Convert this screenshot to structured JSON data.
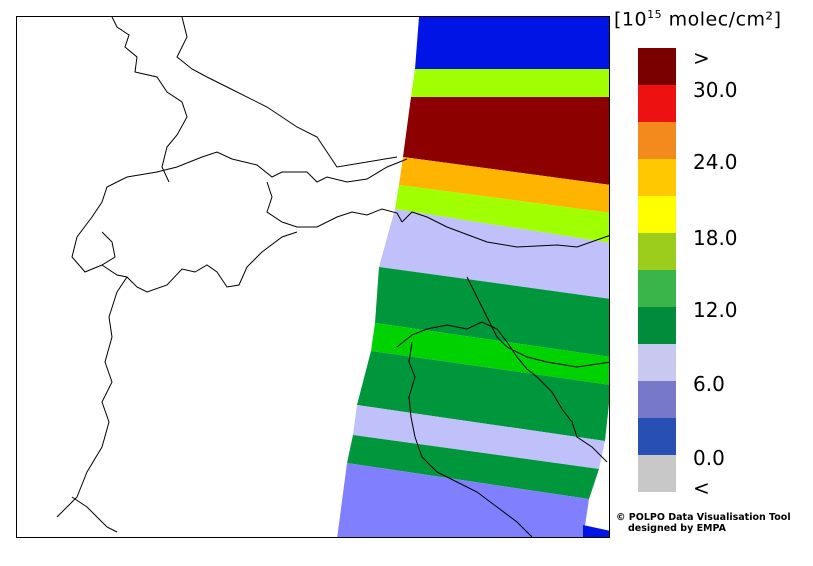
{
  "legend": {
    "unit_prefix": "[10",
    "unit_exp": "15",
    "unit_suffix": " molec/cm²]",
    "colors": [
      "#7a0000",
      "#ee1111",
      "#f28a1d",
      "#ffc800",
      "#ffff00",
      "#9ccc1c",
      "#39b54a",
      "#008c3a",
      "#c8c8f0",
      "#7878c8",
      "#2850b4",
      "#c8c8c8"
    ],
    "labels": [
      ">",
      "30.0",
      "24.0",
      "18.0",
      "12.0",
      "6.0",
      "0.0",
      "<"
    ]
  },
  "swath_colors": {
    "blue": "#0014e6",
    "light_green": "#a0ff00",
    "dark_red": "#8c0000",
    "orange": "#ffb400",
    "lavender": "#c0c0fa",
    "green": "#00963c",
    "bright_green": "#00d200",
    "periwinkle": "#8080ff"
  },
  "credit": {
    "line1": "© POLPO Data Visualisation Tool",
    "line2": "designed by EMPA"
  }
}
